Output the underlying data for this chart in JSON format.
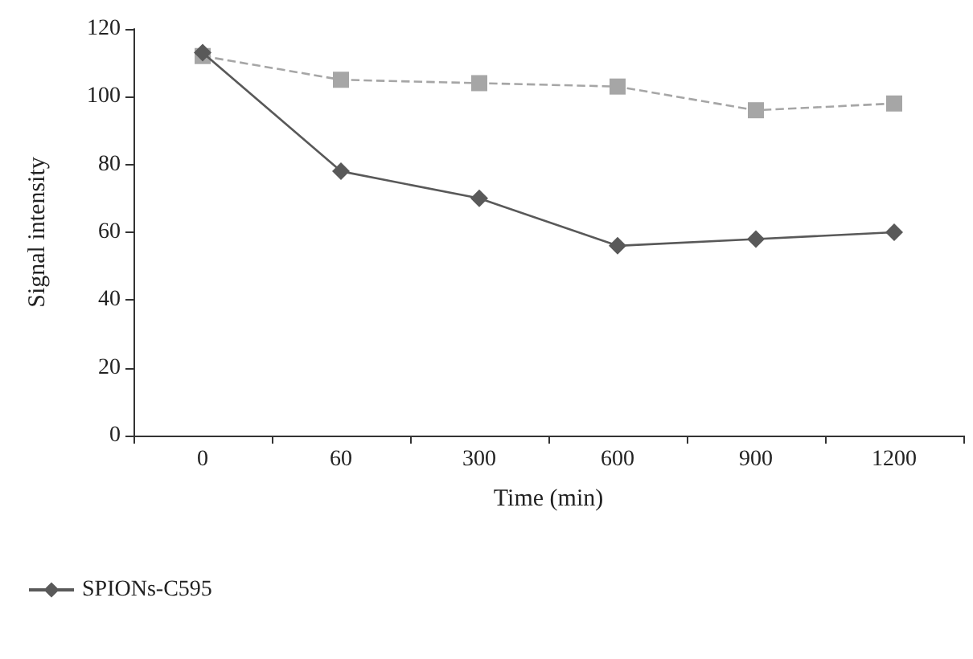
{
  "chart_data": {
    "type": "line",
    "xlabel": "Time (min)",
    "ylabel": "Signal intensity",
    "categories": [
      "0",
      "60",
      "300",
      "600",
      "900",
      "1200"
    ],
    "series": [
      {
        "name": "SPIONs-C595",
        "color": "#595959",
        "marker": "diamond",
        "line_style": "solid",
        "values": [
          113,
          78,
          70,
          56,
          58,
          60
        ]
      },
      {
        "color": "#a6a6a6",
        "marker": "square",
        "line_style": "dashed",
        "values": [
          112,
          105,
          104,
          103,
          96,
          98
        ]
      }
    ],
    "ylim": [
      0,
      120
    ],
    "yticks": [
      0,
      20,
      40,
      60,
      80,
      100,
      120
    ],
    "grid": false,
    "legend": "bottom left"
  }
}
